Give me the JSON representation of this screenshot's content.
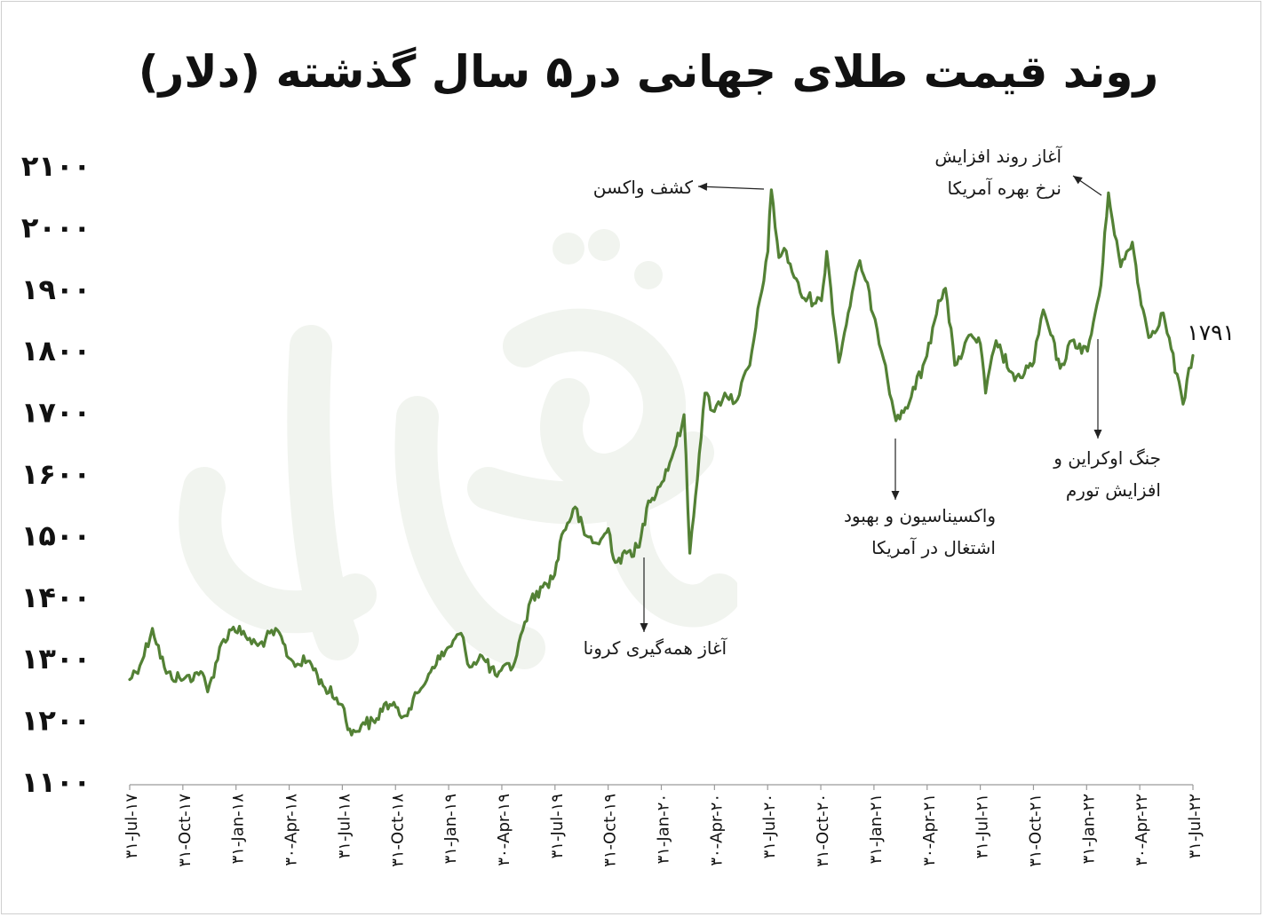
{
  "chart_data": {
    "type": "line",
    "title": "روند قیمت طلای جهانی در۵ سال گذشته (دلار)",
    "ylim": [
      1100,
      2100
    ],
    "y_ticks": [
      "۲۱۰۰",
      "۲۰۰۰",
      "۱۹۰۰",
      "۱۸۰۰",
      "۱۷۰۰",
      "۱۶۰۰",
      "۱۵۰۰",
      "۱۴۰۰",
      "۱۳۰۰",
      "۱۲۰۰",
      "۱۱۰۰"
    ],
    "x_ticks": [
      "۳۱-Jul-۱۷",
      "۳۱-Oct-۱۷",
      "۳۱-Jan-۱۸",
      "۳۰-Apr-۱۸",
      "۳۱-Jul-۱۸",
      "۳۱-Oct-۱۸",
      "۳۱-Jan-۱۹",
      "۳۰-Apr-۱۹",
      "۳۱-Jul-۱۹",
      "۳۱-Oct-۱۹",
      "۳۱-Jan-۲۰",
      "۳۰-Apr-۲۰",
      "۳۱-Jul-۲۰",
      "۳۱-Oct-۲۰",
      "۳۱-Jan-۲۱",
      "۳۰-Apr-۲۱",
      "۳۱-Jul-۲۱",
      "۳۱-Oct-۲۱",
      "۳۱-Jan-۲۲",
      "۳۰-Apr-۲۲",
      "۳۱-Jul-۲۲"
    ],
    "grid": false,
    "line_color": "#538135",
    "series": [
      {
        "x": [
          "2017-07-31",
          "2017-08-21",
          "2017-09-08",
          "2017-10-02",
          "2017-10-31",
          "2017-11-30",
          "2017-12-12",
          "2018-01-05",
          "2018-01-25",
          "2018-02-15",
          "2018-03-08",
          "2018-04-11",
          "2018-04-30",
          "2018-05-15",
          "2018-06-05",
          "2018-06-28",
          "2018-07-31",
          "2018-08-16",
          "2018-09-05",
          "2018-09-25",
          "2018-10-11",
          "2018-10-31",
          "2018-11-13",
          "2018-12-10",
          "2019-01-02",
          "2019-01-31",
          "2019-02-20",
          "2019-03-07",
          "2019-03-25",
          "2019-04-23",
          "2019-04-30",
          "2019-05-20",
          "2019-06-06",
          "2019-06-20",
          "2019-07-10",
          "2019-07-31",
          "2019-08-12",
          "2019-09-04",
          "2019-09-20",
          "2019-10-15",
          "2019-10-31",
          "2019-11-12",
          "2019-12-01",
          "2019-12-23",
          "2020-01-08",
          "2020-01-31",
          "2020-02-24",
          "2020-03-09",
          "2020-03-19",
          "2020-04-14",
          "2020-04-30",
          "2020-05-18",
          "2020-06-05",
          "2020-06-30",
          "2020-07-31",
          "2020-08-06",
          "2020-08-19",
          "2020-08-28",
          "2020-09-28",
          "2020-10-31",
          "2020-11-09",
          "2020-11-30",
          "2020-12-16",
          "2021-01-05",
          "2021-01-31",
          "2021-02-18",
          "2021-03-08",
          "2021-03-31",
          "2021-04-30",
          "2021-05-20",
          "2021-06-01",
          "2021-06-17",
          "2021-07-15",
          "2021-07-31",
          "2021-08-09",
          "2021-08-27",
          "2021-09-28",
          "2021-10-31",
          "2021-11-08",
          "2021-11-16",
          "2021-12-15",
          "2022-01-04",
          "2022-01-31",
          "2022-02-23",
          "2022-03-08",
          "2022-03-29",
          "2022-04-18",
          "2022-04-30",
          "2022-05-16",
          "2022-06-10",
          "2022-07-14",
          "2022-07-31"
        ],
        "y": [
          1265,
          1295,
          1348,
          1275,
          1265,
          1278,
          1245,
          1325,
          1350,
          1335,
          1320,
          1345,
          1300,
          1290,
          1295,
          1255,
          1224,
          1175,
          1195,
          1195,
          1225,
          1220,
          1205,
          1245,
          1285,
          1318,
          1340,
          1285,
          1305,
          1270,
          1280,
          1285,
          1345,
          1395,
          1415,
          1435,
          1500,
          1545,
          1500,
          1485,
          1510,
          1455,
          1470,
          1480,
          1555,
          1585,
          1645,
          1695,
          1470,
          1730,
          1700,
          1730,
          1715,
          1775,
          1960,
          2060,
          1950,
          1965,
          1885,
          1880,
          1960,
          1780,
          1860,
          1945,
          1850,
          1775,
          1685,
          1715,
          1790,
          1880,
          1900,
          1775,
          1825,
          1810,
          1730,
          1815,
          1750,
          1780,
          1825,
          1865,
          1770,
          1815,
          1798,
          1905,
          2055,
          1935,
          1975,
          1895,
          1820,
          1860,
          1712,
          1791
        ]
      }
    ],
    "end_label": "۱۷۹۱",
    "annotations": [
      {
        "text_lines": [
          "کشف واکسن"
        ]
      },
      {
        "text_lines": [
          "آغاز روند افزایش",
          "نرخ بهره آمریکا"
        ]
      },
      {
        "text_lines": [
          "آغاز همه‌گیری کرونا"
        ]
      },
      {
        "text_lines": [
          "واکسیناسیون و بهبود",
          "اشتغال در آمریکا"
        ]
      },
      {
        "text_lines": [
          "جنگ اوکراین و",
          "افزایش تورم"
        ]
      }
    ]
  }
}
